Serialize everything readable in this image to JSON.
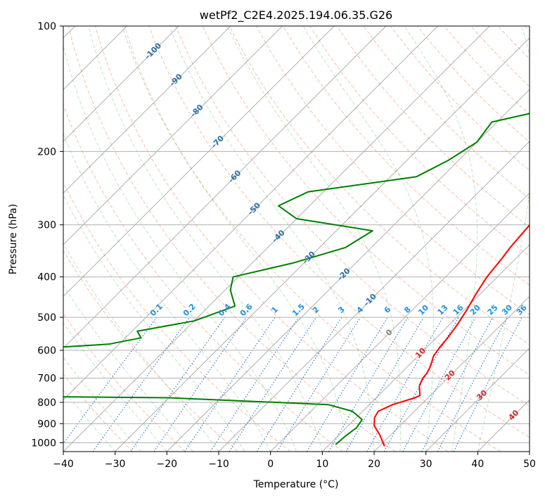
{
  "chart_data": {
    "type": "line",
    "chart_kind": "skew-t",
    "title": "wetPf2_C2E4.2025.194.06.35.G26",
    "xlabel": "Temperature (°C)",
    "ylabel": "Pressure (hPa)",
    "xlim": [
      -40,
      50
    ],
    "ylim": [
      1050,
      100
    ],
    "y_scale": "log",
    "grid": true,
    "x_ticks": [
      -40,
      -30,
      -20,
      -10,
      0,
      10,
      20,
      30,
      40,
      50
    ],
    "y_ticks": [
      1000,
      900,
      800,
      700,
      600,
      500,
      400,
      300,
      200,
      100
    ],
    "isotherm_labels": [
      -100,
      -90,
      -80,
      -70,
      -60,
      -50,
      -40,
      -30,
      -20,
      -10
    ],
    "mixing_ratio_labels": [
      "0.1",
      "0.2",
      "0.4",
      "0.6",
      "1",
      "1.5",
      "2",
      "3",
      "4",
      "6",
      "8",
      "10",
      "13",
      "16",
      "20",
      "25",
      "30",
      "36"
    ],
    "extra_isotherm_labels": [
      {
        "text": "0",
        "color": "#808080"
      },
      {
        "text": "10",
        "color": "#d62728"
      },
      {
        "text": "20",
        "color": "#d62728"
      },
      {
        "text": "30",
        "color": "#d62728"
      },
      {
        "text": "40",
        "color": "#d62728"
      }
    ],
    "series": [
      {
        "color": "#ff0000",
        "x": [
          21,
          18,
          15,
          13.5,
          13,
          14.5,
          17.5,
          18,
          16,
          15.2,
          15,
          14.5,
          13.8,
          13,
          12.5,
          12.2,
          11.5,
          10.5,
          9.2,
          8,
          7.3,
          6.8,
          6.5,
          6.2,
          6.4,
          7,
          8.3,
          9.5,
          10.5,
          11,
          11.2,
          10.6,
          9.8,
          8.9,
          7.7,
          6.5,
          5.7,
          5.4,
          6.2,
          8.6,
          12.1
        ],
        "y": [
          1020,
          960,
          910,
          870,
          840,
          810,
          780,
          770,
          730,
          700,
          680,
          660,
          640,
          620,
          590,
          560,
          520,
          480,
          440,
          400,
          360,
          340,
          320,
          300,
          285,
          270,
          255,
          240,
          225,
          210,
          200,
          185,
          170,
          155,
          140,
          130,
          122,
          115,
          110,
          105,
          100
        ]
      },
      {
        "color": "#008000",
        "x": [
          11.2,
          11.5,
          12,
          11.5,
          8,
          2,
          -30,
          -55,
          -70,
          -95,
          -88,
          -70,
          -90,
          -80,
          -65,
          -66,
          -70,
          -52,
          -47,
          -49,
          -40,
          -35,
          -39,
          -41,
          -32,
          -25,
          -23,
          -40,
          -46,
          -43,
          -25,
          -22,
          -20,
          -21,
          -6,
          -0.3,
          1.3,
          4.6,
          3.4
        ],
        "y": [
          1010,
          960,
          920,
          880,
          840,
          810,
          780,
          775,
          770,
          760,
          745,
          730,
          700,
          680,
          660,
          630,
          600,
          580,
          560,
          540,
          510,
          470,
          430,
          400,
          370,
          340,
          310,
          290,
          270,
          250,
          230,
          210,
          190,
          170,
          150,
          130,
          120,
          105,
          100
        ]
      }
    ]
  }
}
